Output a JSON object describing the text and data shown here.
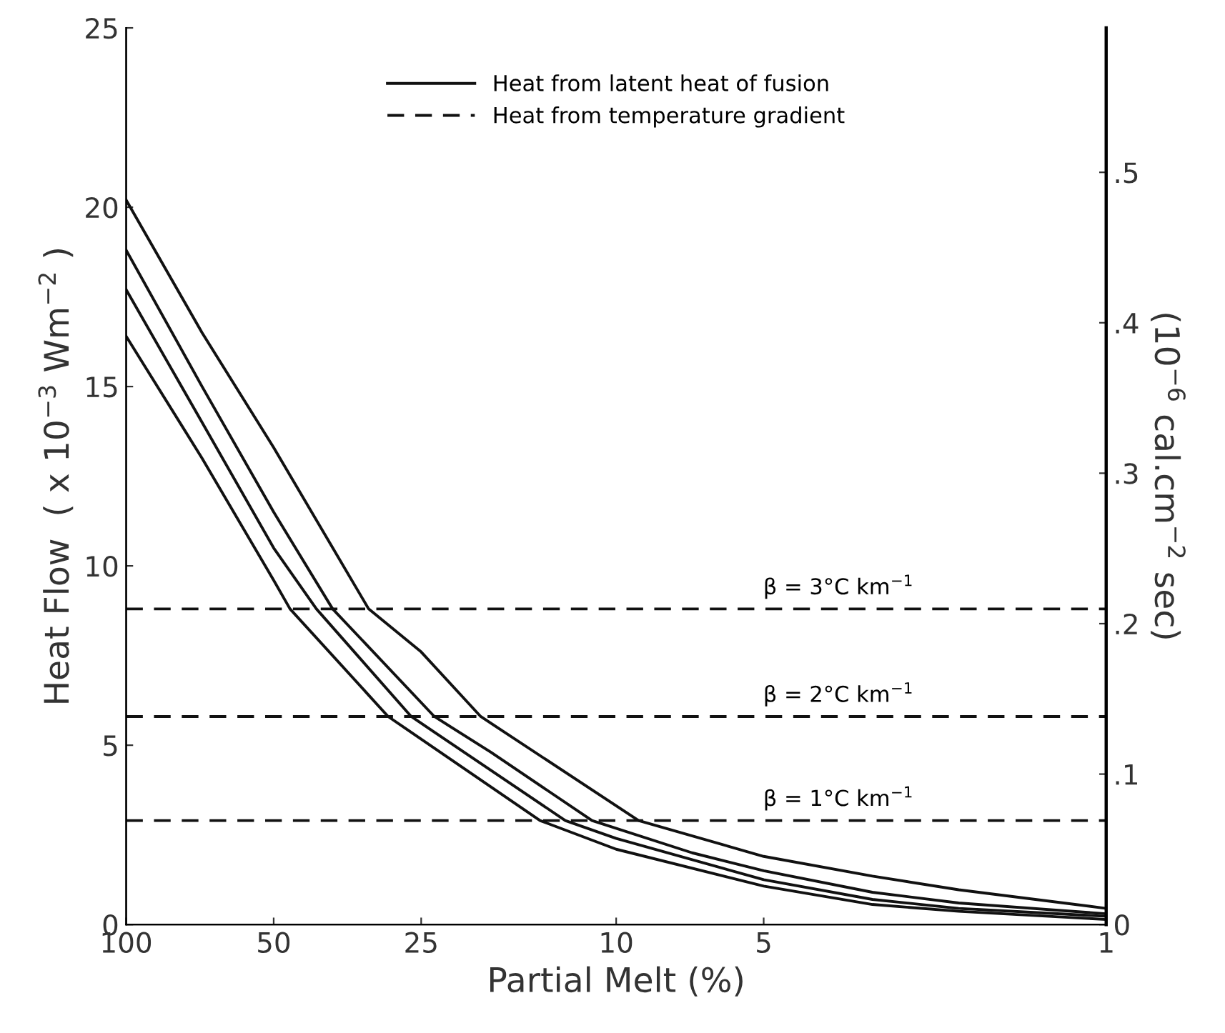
{
  "chart_data": {
    "type": "line",
    "xlabel": "Partial Melt (%)",
    "ylabel": "Heat Flow  ( x 10$^{−3}$ Wm$^{−2}$ )",
    "y2label": "(10$^{−6}$ cal.cm$^{−2}$ sec)",
    "log": "x",
    "xlim": [
      100,
      1
    ],
    "xticks": [
      100,
      50,
      25,
      10,
      5,
      1
    ],
    "ylim": [
      0,
      25
    ],
    "yticks": [
      0,
      5,
      10,
      15,
      20,
      25
    ],
    "y2lim": [
      0,
      0.596
    ],
    "y2ticks": [
      {
        "value": 0,
        "label": "0"
      },
      {
        "value": 0.1,
        "label": ".1"
      },
      {
        "value": 0.2,
        "label": ".2"
      },
      {
        "value": 0.3,
        "label": ".3"
      },
      {
        "value": 0.4,
        "label": ".4"
      },
      {
        "value": 0.5,
        "label": ".5"
      }
    ],
    "grid": false,
    "legend": "top",
    "marker": "none",
    "series": [
      {
        "name": "Heat from latent heat of fusion",
        "color": "#111111",
        "line_style": "solid",
        "x": [
          100,
          70,
          50,
          32,
          25,
          18.9,
          9,
          5,
          3,
          2,
          1
        ],
        "values": [
          20.2,
          16.5,
          13.3,
          8.8,
          7.6,
          5.8,
          2.9,
          1.9,
          1.35,
          0.97,
          0.45
        ]
      },
      {
        "color": "#111111",
        "line_style": "solid",
        "x": [
          100,
          70,
          50,
          37.9,
          23.5,
          18,
          11.2,
          7,
          5,
          3,
          2,
          1
        ],
        "values": [
          18.8,
          15.0,
          11.5,
          8.8,
          5.8,
          4.8,
          2.9,
          2.0,
          1.5,
          0.9,
          0.6,
          0.3
        ]
      },
      {
        "color": "#111111",
        "line_style": "solid",
        "x": [
          100,
          70,
          50,
          40.9,
          26.2,
          12.7,
          10,
          5,
          3,
          2,
          1
        ],
        "values": [
          17.7,
          14.0,
          10.5,
          8.8,
          5.8,
          2.9,
          2.4,
          1.25,
          0.7,
          0.45,
          0.23
        ]
      },
      {
        "color": "#111111",
        "line_style": "solid",
        "x": [
          100,
          70,
          50,
          46.3,
          29.2,
          14.3,
          10,
          5,
          3,
          2,
          1
        ],
        "values": [
          16.4,
          13.0,
          9.6,
          8.8,
          5.8,
          2.9,
          2.1,
          1.07,
          0.56,
          0.37,
          0.14
        ]
      },
      {
        "name": "Heat from temperature gradient",
        "color": "#111111",
        "line_style": "dashed",
        "x": [
          100,
          1
        ],
        "values": [
          8.8,
          8.8
        ]
      },
      {
        "color": "#111111",
        "line_style": "dashed",
        "x": [
          100,
          1
        ],
        "values": [
          5.8,
          5.8
        ]
      },
      {
        "color": "#111111",
        "line_style": "dashed",
        "x": [
          100,
          1
        ],
        "values": [
          2.9,
          2.9
        ]
      }
    ],
    "annotations": [
      {
        "text": "β = 3°C km$^{−1}$",
        "y": 8.8
      },
      {
        "text": "β = 2°C km$^{−1}$",
        "y": 5.8
      },
      {
        "text": "β = 1°C km$^{−1}$",
        "y": 2.9
      }
    ]
  }
}
